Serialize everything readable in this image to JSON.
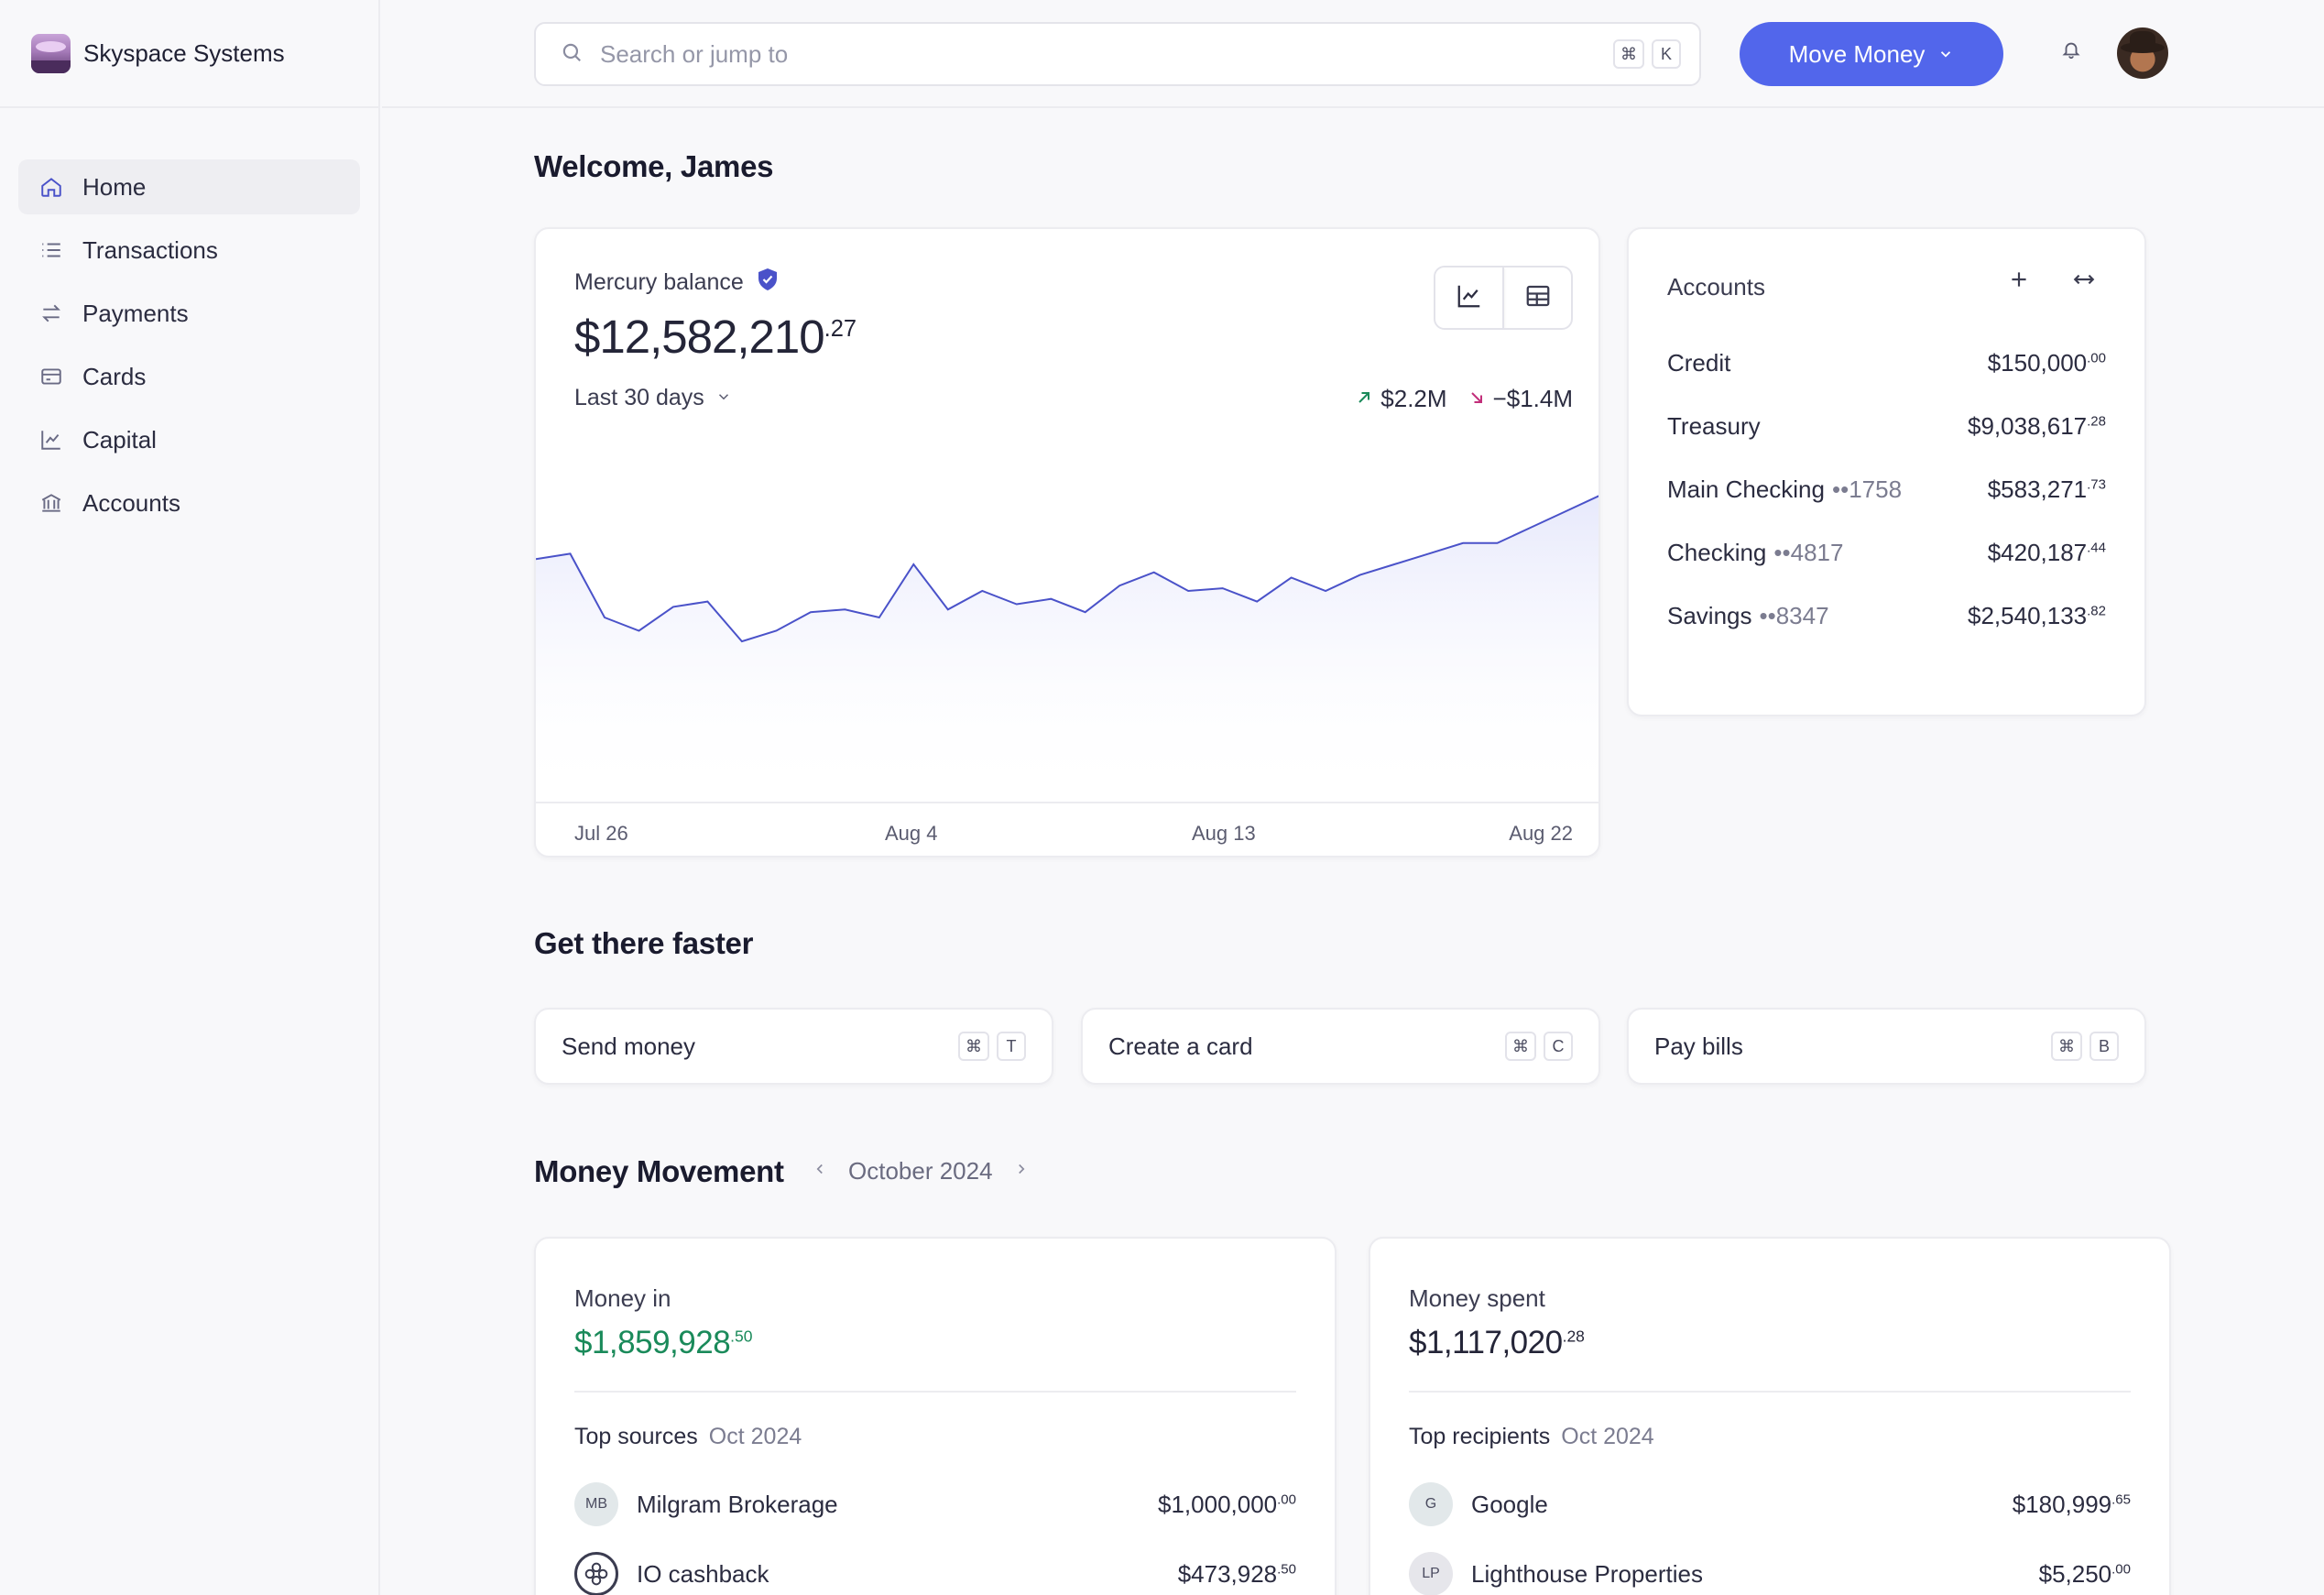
{
  "sidebar": {
    "brand": "Skyspace Systems",
    "items": [
      {
        "label": "Home",
        "icon": "home-icon"
      },
      {
        "label": "Transactions",
        "icon": "list-icon"
      },
      {
        "label": "Payments",
        "icon": "transfer-icon"
      },
      {
        "label": "Cards",
        "icon": "card-icon"
      },
      {
        "label": "Capital",
        "icon": "chart-line-icon"
      },
      {
        "label": "Accounts",
        "icon": "bank-icon"
      }
    ]
  },
  "topbar": {
    "search_placeholder": "Search or jump to",
    "search_kbd": [
      "⌘",
      "K"
    ],
    "move_money": "Move Money"
  },
  "welcome": "Welcome, James",
  "balance": {
    "label": "Mercury balance",
    "amount": "$12,582,210",
    "cents": ".27",
    "range": "Last 30 days",
    "money_in": "$2.2M",
    "money_out": "−$1.4M",
    "x_ticks": [
      "Jul 26",
      "Aug 4",
      "Aug 13",
      "Aug 22"
    ]
  },
  "chart_data": {
    "type": "area",
    "title": "",
    "xlabel": "",
    "ylabel": "",
    "x_ticks": [
      "Jul 26",
      "Aug 4",
      "Aug 13",
      "Aug 22"
    ],
    "series": [
      {
        "values": [
          0.62,
          0.64,
          0.4,
          0.35,
          0.44,
          0.46,
          0.31,
          0.35,
          0.42,
          0.43,
          0.4,
          0.6,
          0.43,
          0.5,
          0.45,
          0.47,
          0.42,
          0.52,
          0.57,
          0.5,
          0.51,
          0.46,
          0.55,
          0.5,
          0.56,
          0.6,
          0.64,
          0.68,
          0.68,
          0.74,
          0.8,
          0.86
        ]
      }
    ],
    "grid": false,
    "color": "#4a52c9"
  },
  "accounts": {
    "title": "Accounts",
    "rows": [
      {
        "name": "Credit",
        "num": "",
        "amount": "$150,000",
        "cents": ".00"
      },
      {
        "name": "Treasury",
        "num": "",
        "amount": "$9,038,617",
        "cents": ".28"
      },
      {
        "name": "Main Checking",
        "num": "••1758",
        "amount": "$583,271",
        "cents": ".73"
      },
      {
        "name": "Checking",
        "num": "••4817",
        "amount": "$420,187",
        "cents": ".44"
      },
      {
        "name": "Savings",
        "num": "••8347",
        "amount": "$2,540,133",
        "cents": ".82"
      }
    ]
  },
  "faster": {
    "title": "Get there faster",
    "actions": [
      {
        "label": "Send money",
        "keys": [
          "⌘",
          "T"
        ]
      },
      {
        "label": "Create a card",
        "keys": [
          "⌘",
          "C"
        ]
      },
      {
        "label": "Pay bills",
        "keys": [
          "⌘",
          "B"
        ]
      }
    ]
  },
  "movement": {
    "title": "Money Movement",
    "month": "October 2024",
    "money_in": {
      "label": "Money in",
      "amount": "$1,859,928",
      "cents": ".50",
      "sub": "Top sources",
      "period": "Oct 2024",
      "rows": [
        {
          "initials": "MB",
          "name": "Milgram Brokerage",
          "amount": "$1,000,000",
          "cents": ".00"
        },
        {
          "initials": "",
          "name": "IO cashback",
          "amount": "$473,928",
          "cents": ".50"
        }
      ]
    },
    "money_out": {
      "label": "Money spent",
      "amount": "$1,117,020",
      "cents": ".28",
      "sub": "Top recipients",
      "period": "Oct 2024",
      "rows": [
        {
          "initials": "G",
          "name": "Google",
          "amount": "$180,999",
          "cents": ".65"
        },
        {
          "initials": "LP",
          "name": "Lighthouse Properties",
          "amount": "$5,250",
          "cents": ".00"
        }
      ]
    }
  }
}
